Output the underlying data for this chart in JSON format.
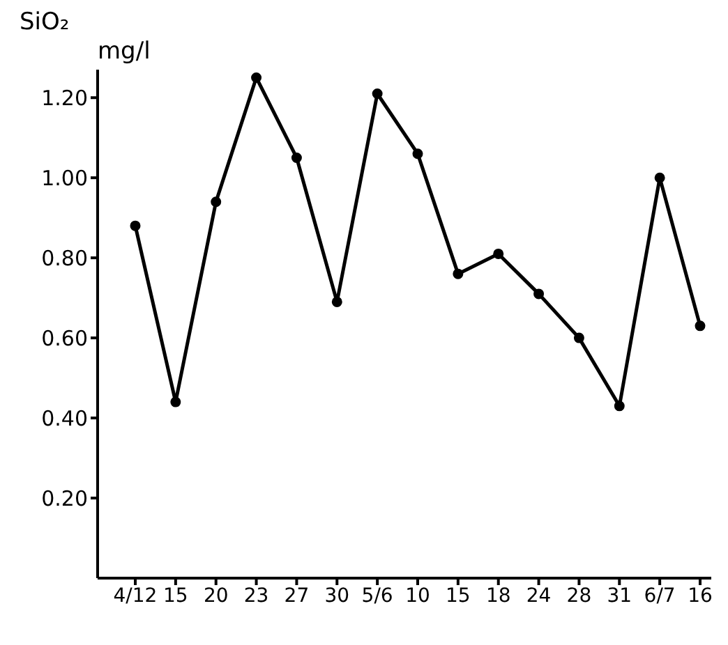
{
  "chart_data": {
    "type": "line",
    "title": "SiO₂",
    "ylabel": "mg/l",
    "categories": [
      "4/12",
      "15",
      "20",
      "23",
      "27",
      "30",
      "5/6",
      "10",
      "15",
      "18",
      "24",
      "28",
      "31",
      "6/7",
      "16"
    ],
    "series": [
      {
        "color": "#000000",
        "values": [
          0.88,
          0.44,
          0.94,
          1.25,
          1.05,
          0.69,
          1.21,
          1.06,
          0.76,
          0.81,
          0.71,
          0.6,
          0.43,
          1.0,
          0.63
        ]
      }
    ],
    "ylim": [
      0,
      1.27
    ],
    "yticks": [
      {
        "value": 0.2,
        "label": "0.20"
      },
      {
        "value": 0.4,
        "label": "0.40"
      },
      {
        "value": 0.6,
        "label": "0.60"
      },
      {
        "value": 0.8,
        "label": "0.80"
      },
      {
        "value": 1.0,
        "label": "1.00"
      },
      {
        "value": 1.2,
        "label": "1.20"
      }
    ],
    "grid": false,
    "legend": false,
    "marker": "circle",
    "line_style": "solid"
  }
}
